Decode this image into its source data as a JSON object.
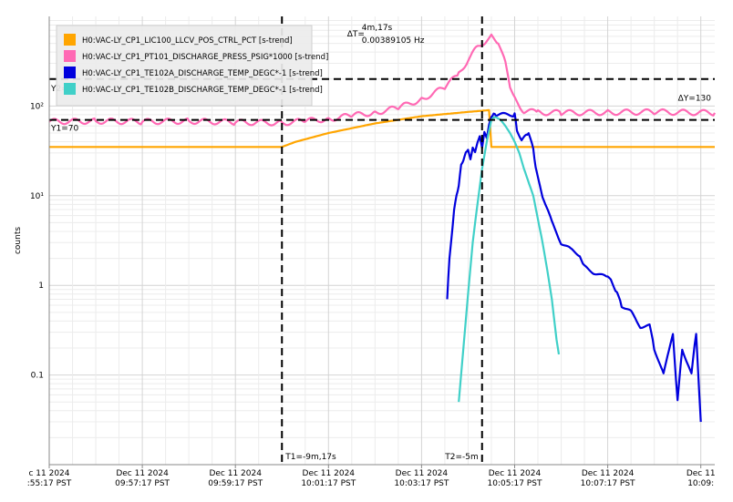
{
  "chart_data": {
    "type": "line",
    "yscale": "log",
    "ylabel": "counts",
    "ylim": [
      0.01,
      1000
    ],
    "y_ticks": [
      {
        "value": 100,
        "label": "10²"
      },
      {
        "value": 10,
        "label": "10¹"
      },
      {
        "value": 1,
        "label": "1"
      },
      {
        "value": 0.1,
        "label": "0.1"
      }
    ],
    "x_ticks": [
      {
        "t": 0,
        "line1": "c 11 2024",
        "line2": ":55:17 PST"
      },
      {
        "t": 2,
        "line1": "Dec 11 2024",
        "line2": "09:57:17 PST"
      },
      {
        "t": 4,
        "line1": "Dec 11 2024",
        "line2": "09:59:17 PST"
      },
      {
        "t": 6,
        "line1": "Dec 11 2024",
        "line2": "10:01:17 PST"
      },
      {
        "t": 8,
        "line1": "Dec 11 2024",
        "line2": "10:03:17 PST"
      },
      {
        "t": 10,
        "line1": "Dec 11 2024",
        "line2": "10:05:17 PST"
      },
      {
        "t": 12,
        "line1": "Dec 11 2024",
        "line2": "10:07:17 PST"
      },
      {
        "t": 14,
        "line1": "Dec 11",
        "line2": "10:09:"
      }
    ],
    "xlim": [
      0,
      14.3
    ],
    "grid": true,
    "legend": "top-left",
    "series": [
      {
        "name": "H0:VAC-LY_CP1_LIC100_LLCV_POS_CTRL_PCT [s-trend]",
        "color": "#FFA500",
        "x": [
          0,
          5.0,
          5.3,
          6.0,
          7.0,
          8.0,
          9.0,
          9.45,
          9.5,
          14.3
        ],
        "y": [
          35,
          35,
          40,
          50,
          64,
          77,
          86,
          90,
          35,
          35
        ]
      },
      {
        "name": "H0:VAC-LY_CP1_PT101_DISCHARGE_PRESS_PSIG*1000 [s-trend]",
        "color": "#FF69B4",
        "x": [
          0,
          1,
          2,
          3,
          4,
          5,
          5.5,
          6,
          6.5,
          7,
          7.5,
          8,
          8.5,
          8.8,
          9.0,
          9.2,
          9.4,
          9.5,
          9.65,
          9.8,
          9.9,
          10.0,
          10.2,
          10.5,
          11,
          12,
          13,
          14.3
        ],
        "y": [
          67,
          68,
          67,
          68,
          66,
          65,
          68,
          72,
          78,
          85,
          95,
          120,
          160,
          230,
          330,
          450,
          550,
          600,
          520,
          300,
          170,
          120,
          88,
          85,
          84,
          85,
          86,
          84
        ]
      },
      {
        "name": "H0:VAC-LY_CP1_TE102A_DISCHARGE_TEMP_DEGC*-1 [s-trend]",
        "color": "#0000DD",
        "x": [
          8.55,
          8.6,
          8.7,
          8.75,
          8.8,
          8.85,
          8.9,
          8.95,
          9.0,
          9.05,
          9.1,
          9.15,
          9.2,
          9.25,
          9.3,
          9.35,
          9.4,
          9.45,
          9.5,
          9.55,
          9.6,
          10.0,
          10.05,
          10.15,
          10.25,
          10.3,
          10.4,
          10.45,
          10.6,
          10.8,
          11.0,
          11.2,
          11.4,
          11.5,
          11.7,
          12.0,
          12.1,
          12.2,
          12.3,
          12.5,
          12.7,
          12.9,
          13.0,
          13.2,
          13.4,
          13.5,
          13.6,
          13.8,
          13.9,
          14.0
        ],
        "y": [
          0.7,
          2,
          7,
          10,
          13,
          22,
          25,
          30,
          33,
          25,
          35,
          30,
          40,
          45,
          35,
          50,
          45,
          60,
          78,
          80,
          80,
          80,
          55,
          40,
          50,
          48,
          35,
          20,
          10,
          5,
          3,
          2.5,
          2.2,
          1.6,
          1.4,
          1.2,
          1.1,
          0.8,
          0.6,
          0.5,
          0.35,
          0.35,
          0.2,
          0.1,
          0.3,
          0.05,
          0.2,
          0.1,
          0.3,
          0.03
        ]
      },
      {
        "name": "H0:VAC-LY_CP1_TE102B_DISCHARGE_TEMP_DEGC*-1 [s-trend]",
        "color": "#40D0C8",
        "x": [
          8.8,
          8.9,
          9.0,
          9.1,
          9.2,
          9.3,
          9.4,
          9.5,
          9.55,
          9.6,
          9.7,
          9.8,
          9.9,
          10.0,
          10.1,
          10.2,
          10.4,
          10.6,
          10.7,
          10.8,
          10.9,
          10.95
        ],
        "y": [
          0.05,
          0.2,
          0.8,
          3,
          8,
          20,
          40,
          70,
          75,
          75,
          70,
          60,
          50,
          40,
          30,
          20,
          10,
          3,
          1.5,
          0.7,
          0.25,
          0.17
        ]
      }
    ],
    "cursors": {
      "t1_label": "T1=-9m,17s",
      "t1_x": 5.0,
      "t2_label": "T2=-5m",
      "t2_x": 9.3,
      "y1_label": "Y1=70",
      "y1_value": 70,
      "y2_label": "Y2=",
      "y2_value": 200,
      "delta_t_label": "ΔT=",
      "delta_t_value": "4m,17s",
      "delta_t_freq": "0.00389105 Hz",
      "delta_y_label": "ΔY=130"
    }
  }
}
